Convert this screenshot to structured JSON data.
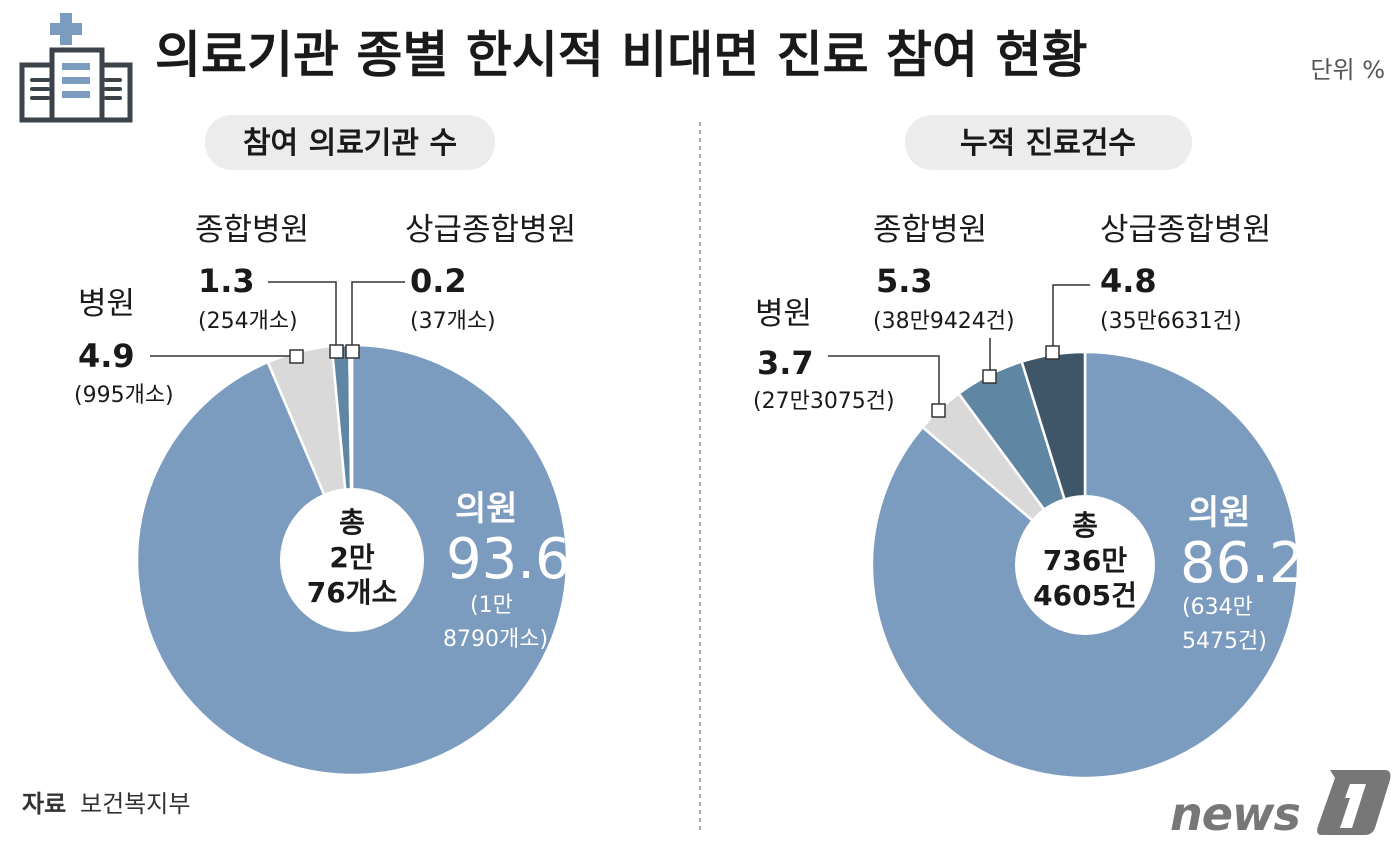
{
  "title": "의료기관 종별 한시적 비대면 진료 참여 현황",
  "unit": "단위 %",
  "source_label": "자료",
  "source": "보건복지부",
  "logo": "news1",
  "colors": {
    "clinic": "#7b9bbf",
    "hospital": "#d9d9d9",
    "general": "#5f86a3",
    "tertiary": "#3f5669",
    "icon_dark": "#3b4249",
    "icon_blue": "#7b9bbf"
  },
  "chart_data": [
    {
      "type": "pie",
      "title": "참여 의료기관 수",
      "center": {
        "line1": "총",
        "line2": "2만",
        "line3": "76개소"
      },
      "slices": [
        {
          "name": "의원",
          "value": 93.6,
          "count": "(1만",
          "count2": "8790개소)",
          "color": "#7b9bbf"
        },
        {
          "name": "병원",
          "value": 4.9,
          "count": "(995개소)",
          "color": "#d9d9d9"
        },
        {
          "name": "종합병원",
          "value": 1.3,
          "count": "(254개소)",
          "color": "#5f86a3"
        },
        {
          "name": "상급종합병원",
          "value": 0.2,
          "count": "(37개소)",
          "color": "#3f5669"
        }
      ]
    },
    {
      "type": "pie",
      "title": "누적 진료건수",
      "center": {
        "line1": "총",
        "line2": "736만",
        "line3": "4605건"
      },
      "slices": [
        {
          "name": "의원",
          "value": 86.2,
          "count": "(634만",
          "count2": "5475건)",
          "color": "#7b9bbf"
        },
        {
          "name": "병원",
          "value": 3.7,
          "count": "(27만3075건)",
          "color": "#d9d9d9"
        },
        {
          "name": "종합병원",
          "value": 5.3,
          "count": "(38만9424건)",
          "color": "#5f86a3"
        },
        {
          "name": "상급종합병원",
          "value": 4.8,
          "count": "(35만6631건)",
          "color": "#3f5669"
        }
      ]
    }
  ]
}
